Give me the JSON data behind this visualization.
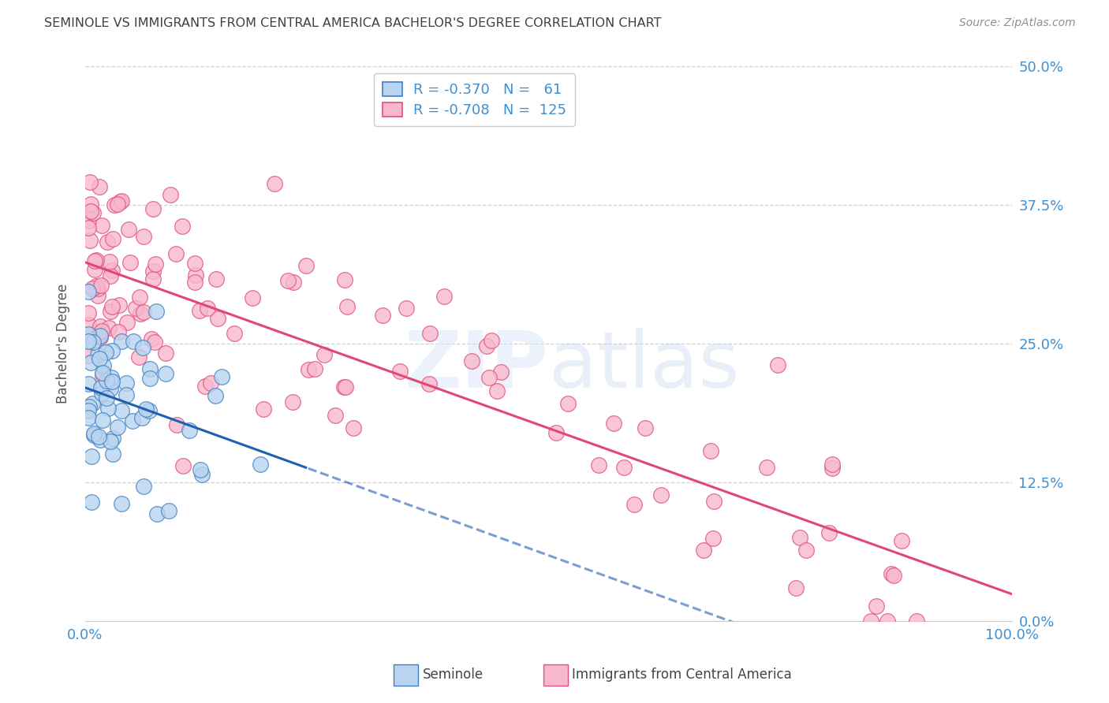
{
  "title": "SEMINOLE VS IMMIGRANTS FROM CENTRAL AMERICA BACHELOR'S DEGREE CORRELATION CHART",
  "source": "Source: ZipAtlas.com",
  "ylabel": "Bachelor's Degree",
  "ytick_vals": [
    0.0,
    12.5,
    25.0,
    37.5,
    50.0
  ],
  "xlim": [
    0,
    100
  ],
  "ylim": [
    0,
    50
  ],
  "legend_r1": "-0.370",
  "legend_n1": "61",
  "legend_r2": "-0.708",
  "legend_n2": "125",
  "color_seminole_fill": "#b8d4f0",
  "color_seminole_edge": "#4080c0",
  "color_central_fill": "#f8b8cc",
  "color_central_edge": "#e05080",
  "color_seminole_line": "#2060b0",
  "color_central_line": "#e04878",
  "color_axis_labels": "#4090d0",
  "color_title": "#404040",
  "color_source": "#909090",
  "color_grid": "#d0d0d0",
  "bottom_legend_label1": "Seminole",
  "bottom_legend_label2": "Immigrants from Central America"
}
